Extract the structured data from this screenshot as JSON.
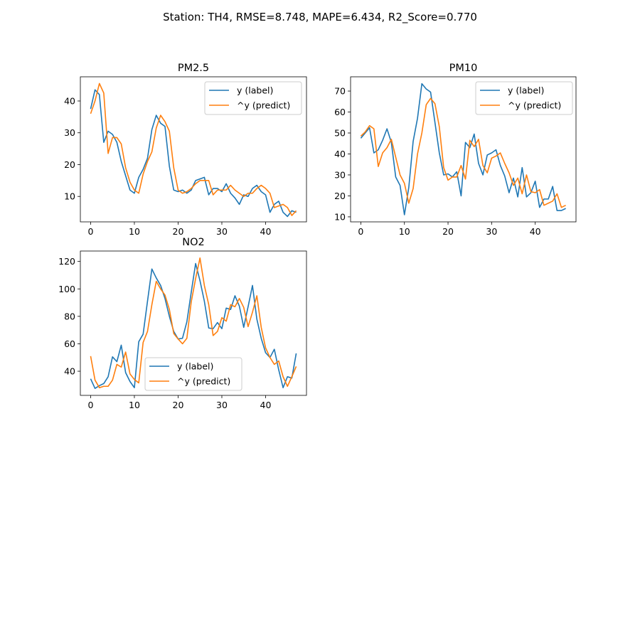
{
  "figure": {
    "suptitle": "Station: TH4, RMSE=8.748, MAPE=6.434, R2_Score=0.770"
  },
  "chart_data": [
    {
      "type": "line",
      "title": "PM2.5",
      "xlabel": "",
      "ylabel": "",
      "xlim": [
        -2.35,
        49.35
      ],
      "ylim": [
        2.0,
        47.6
      ],
      "xticks": [
        0,
        10,
        20,
        30,
        40
      ],
      "yticks": [
        10,
        20,
        30,
        40
      ],
      "legend": "upper right",
      "series": [
        {
          "name": "y (label)",
          "color": "#1f77b4",
          "values": [
            37.5,
            43.5,
            42.0,
            27.0,
            30.5,
            29.5,
            27.0,
            21.0,
            16.5,
            12.0,
            11.0,
            16.0,
            18.5,
            22.0,
            31.0,
            35.5,
            33.0,
            32.0,
            19.5,
            12.0,
            11.5,
            12.0,
            11.0,
            12.0,
            15.0,
            15.5,
            16.0,
            10.5,
            12.5,
            12.5,
            11.5,
            14.0,
            11.0,
            9.5,
            7.5,
            10.5,
            10.0,
            12.5,
            13.5,
            11.5,
            10.5,
            5.0,
            7.5,
            8.5,
            5.0,
            3.7,
            5.5,
            5.0
          ]
        },
        {
          "name": "^y (predict)",
          "color": "#ff7f0e",
          "values": [
            36.0,
            40.0,
            45.5,
            42.5,
            23.5,
            28.5,
            28.5,
            26.5,
            19.0,
            14.5,
            12.0,
            11.0,
            17.0,
            21.0,
            24.0,
            31.5,
            35.5,
            33.5,
            30.5,
            19.0,
            12.0,
            11.0,
            11.5,
            12.5,
            14.0,
            15.0,
            15.0,
            15.0,
            10.5,
            12.0,
            12.0,
            12.0,
            13.5,
            12.0,
            11.0,
            10.0,
            11.0,
            11.0,
            12.5,
            13.5,
            12.5,
            11.0,
            6.5,
            7.0,
            7.5,
            6.5,
            4.0,
            5.5
          ]
        }
      ]
    },
    {
      "type": "line",
      "title": "PM10",
      "xlabel": "",
      "ylabel": "",
      "xlim": [
        -2.35,
        49.35
      ],
      "ylim": [
        7.6,
        76.8
      ],
      "xticks": [
        0,
        10,
        20,
        30,
        40
      ],
      "yticks": [
        10,
        20,
        30,
        40,
        50,
        60,
        70
      ],
      "legend": "upper right",
      "series": [
        {
          "name": "y (label)",
          "color": "#1f77b4",
          "values": [
            47.5,
            50.0,
            52.5,
            40.5,
            42.0,
            46.5,
            52.0,
            45.5,
            29.0,
            25.0,
            11.0,
            24.0,
            46.0,
            57.0,
            73.5,
            71.0,
            69.5,
            55.0,
            40.5,
            30.0,
            30.5,
            29.0,
            31.5,
            20.0,
            45.5,
            43.0,
            49.5,
            35.5,
            30.0,
            39.5,
            40.5,
            42.0,
            34.5,
            29.5,
            21.5,
            28.5,
            19.5,
            33.5,
            19.5,
            21.5,
            27.0,
            14.5,
            18.5,
            18.5,
            24.5,
            13.0,
            13.0,
            14.0
          ]
        },
        {
          "name": "^y (predict)",
          "color": "#ff7f0e",
          "values": [
            48.5,
            50.5,
            53.5,
            52.0,
            34.0,
            40.5,
            43.0,
            47.0,
            38.5,
            30.0,
            26.0,
            16.5,
            23.5,
            40.0,
            50.0,
            63.5,
            66.5,
            64.0,
            53.0,
            33.5,
            27.5,
            29.0,
            29.0,
            34.5,
            28.0,
            46.5,
            43.5,
            47.0,
            34.5,
            31.0,
            38.0,
            39.0,
            40.5,
            35.5,
            31.0,
            25.0,
            28.5,
            21.0,
            30.0,
            22.0,
            21.5,
            23.0,
            15.5,
            16.5,
            17.5,
            21.0,
            14.5,
            15.5
          ]
        }
      ]
    },
    {
      "type": "line",
      "title": "NO2",
      "xlabel": "",
      "ylabel": "",
      "xlim": [
        -2.35,
        49.35
      ],
      "ylim": [
        22.4,
        127.6
      ],
      "xticks": [
        0,
        10,
        20,
        30,
        40
      ],
      "yticks": [
        40,
        60,
        80,
        100,
        120
      ],
      "legend": "lower center",
      "series": [
        {
          "name": "y (label)",
          "color": "#1f77b4",
          "values": [
            34.5,
            27.5,
            29.5,
            31.0,
            36.0,
            50.5,
            47.0,
            59.0,
            39.0,
            32.5,
            28.0,
            61.5,
            67.0,
            91.0,
            114.5,
            108.0,
            102.5,
            93.0,
            80.0,
            69.0,
            63.5,
            64.0,
            76.0,
            97.5,
            118.5,
            106.0,
            91.0,
            71.5,
            71.0,
            75.5,
            71.0,
            86.0,
            85.0,
            95.0,
            87.5,
            72.0,
            87.0,
            102.5,
            78.0,
            64.0,
            53.5,
            50.0,
            56.0,
            41.0,
            28.0,
            36.0,
            35.0,
            53.0
          ]
        },
        {
          "name": "^y (predict)",
          "color": "#ff7f0e",
          "values": [
            51.0,
            33.5,
            28.0,
            29.0,
            29.0,
            33.5,
            45.0,
            43.0,
            54.0,
            38.0,
            34.0,
            31.5,
            61.0,
            69.0,
            88.5,
            105.5,
            100.0,
            95.5,
            85.0,
            67.5,
            63.5,
            60.0,
            64.0,
            90.5,
            107.5,
            122.5,
            102.5,
            88.5,
            66.0,
            69.0,
            79.0,
            76.5,
            88.5,
            87.0,
            93.0,
            86.5,
            72.5,
            83.0,
            95.0,
            72.0,
            57.0,
            50.0,
            45.0,
            47.5,
            36.0,
            29.0,
            36.0,
            43.5
          ]
        }
      ]
    }
  ]
}
